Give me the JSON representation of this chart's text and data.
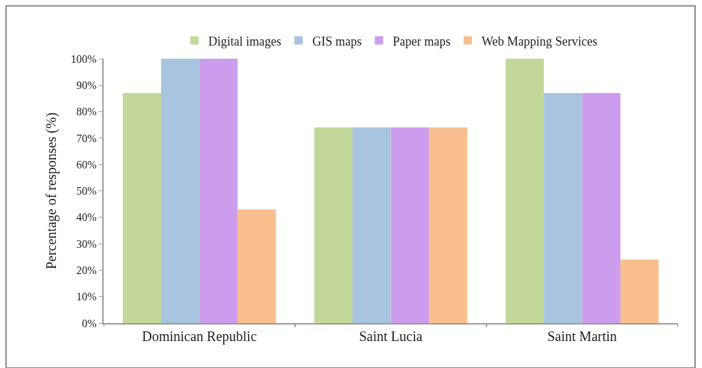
{
  "chart_data": {
    "type": "bar",
    "ylabel": "Percentage of responses (%)",
    "categories": [
      "Dominican Republic",
      "Saint Lucia",
      "Saint Martin"
    ],
    "series": [
      {
        "name": "Digital images",
        "color": "#c4d79b",
        "values": [
          87,
          74,
          100
        ]
      },
      {
        "name": "GIS maps",
        "color": "#a9c4df",
        "values": [
          100,
          74,
          87
        ]
      },
      {
        "name": "Paper maps",
        "color": "#cc9ded",
        "values": [
          100,
          74,
          87
        ]
      },
      {
        "name": "Web Mapping Services",
        "color": "#f9bf8f",
        "values": [
          43,
          74,
          24
        ]
      }
    ],
    "ylim": [
      0,
      100
    ],
    "yticks": [
      {
        "value": 0,
        "label": "0%"
      },
      {
        "value": 10,
        "label": "10%"
      },
      {
        "value": 20,
        "label": "20%"
      },
      {
        "value": 30,
        "label": "30%"
      },
      {
        "value": 40,
        "label": "40%"
      },
      {
        "value": 50,
        "label": "50%"
      },
      {
        "value": 60,
        "label": "60%"
      },
      {
        "value": 70,
        "label": "70%"
      },
      {
        "value": 80,
        "label": "80%"
      },
      {
        "value": 90,
        "label": "90%"
      },
      {
        "value": 100,
        "label": "100%"
      }
    ],
    "legend": "top"
  }
}
